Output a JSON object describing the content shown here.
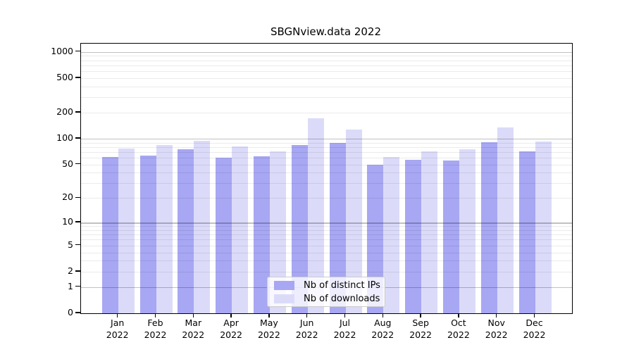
{
  "figure": {
    "title": "SBGNview.data 2022"
  },
  "chart_data": {
    "type": "bar",
    "title": "SBGNview.data 2022",
    "yscale": "log1p",
    "ylim": [
      0,
      1250
    ],
    "grid": "horizontal, log major+minor, drawn over bars",
    "legend_position": "bottom-center",
    "categories": [
      "Jan",
      "Feb",
      "Mar",
      "Apr",
      "May",
      "Jun",
      "Jul",
      "Aug",
      "Sep",
      "Oct",
      "Nov",
      "Dec"
    ],
    "category_year": "2022",
    "yticks": [
      0,
      1,
      2,
      5,
      10,
      20,
      50,
      100,
      200,
      500,
      1000
    ],
    "grid_major_values": [
      1,
      10,
      100,
      1000
    ],
    "series": [
      {
        "name": "Nb of distinct IPs",
        "color": "#a7a7f3",
        "values": [
          61,
          64,
          75,
          60,
          62,
          85,
          89,
          50,
          57,
          56,
          91,
          71
        ]
      },
      {
        "name": "Nb of downloads",
        "color": "#dbdbf9",
        "values": [
          77,
          85,
          94,
          81,
          71,
          172,
          127,
          61,
          71,
          76,
          135,
          93
        ]
      }
    ]
  }
}
